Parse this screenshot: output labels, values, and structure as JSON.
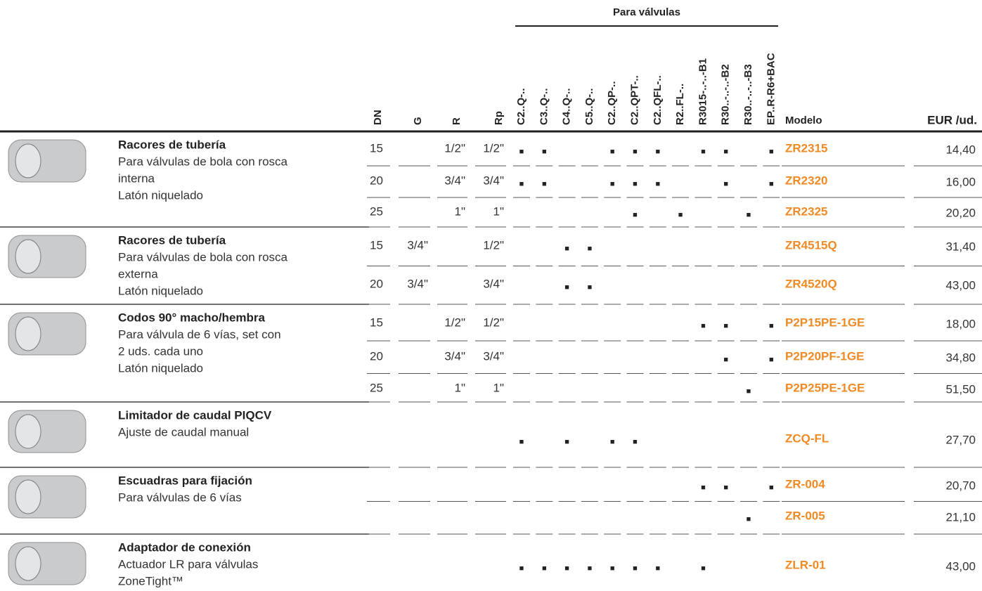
{
  "header": {
    "group_title": "Para válvulas",
    "columns": [
      "DN",
      "G",
      "R",
      "Rp"
    ],
    "valve_columns": [
      "C2..Q-..",
      "C3..Q-..",
      "C4..Q-..",
      "C5..Q-..",
      "C2..QP-..",
      "C2..QPT-..",
      "C2..QFL-..",
      "R2..FL-..",
      "R3015-..-..-B1",
      "R30..-..-..-B2",
      "R30..-..-..-B3",
      "EP..R-R6+BAC"
    ],
    "model": "Modelo",
    "price": "EUR /ud."
  },
  "groups": [
    {
      "description": [
        "Racores de tubería",
        "Para válvulas de bola con rosca",
        "interna",
        "Latón niquelado"
      ],
      "rows": [
        {
          "dn": "15",
          "g": null,
          "r": "1/2\"",
          "rp": "1/2\"",
          "valves": [
            "■",
            "■",
            null,
            null,
            "■",
            "■",
            "■",
            null,
            "■",
            "■",
            null,
            "■"
          ],
          "model": "ZR2315",
          "price": "14,40"
        },
        {
          "dn": "20",
          "g": null,
          "r": "3/4\"",
          "rp": "3/4\"",
          "valves": [
            "■",
            "■",
            null,
            null,
            "■",
            "■",
            "■",
            null,
            null,
            "■",
            null,
            "■"
          ],
          "model": "ZR2320",
          "price": "16,00"
        },
        {
          "dn": "25",
          "g": null,
          "r": "1\"",
          "rp": "1\"",
          "valves": [
            null,
            null,
            null,
            null,
            null,
            "■",
            null,
            "■",
            null,
            null,
            "■",
            null
          ],
          "model": "ZR2325",
          "price": "20,20"
        }
      ]
    },
    {
      "description": [
        "Racores de tubería",
        "Para válvulas de bola con rosca",
        "externa",
        "Latón niquelado"
      ],
      "rows": [
        {
          "dn": "15",
          "g": "3/4\"",
          "r": null,
          "rp": "1/2\"",
          "valves": [
            null,
            null,
            "■",
            "■",
            null,
            null,
            null,
            null,
            null,
            null,
            null,
            null
          ],
          "model": "ZR4515Q",
          "price": "31,40"
        },
        {
          "dn": "20",
          "g": "3/4\"",
          "r": null,
          "rp": "3/4\"",
          "valves": [
            null,
            null,
            "■",
            "■",
            null,
            null,
            null,
            null,
            null,
            null,
            null,
            null
          ],
          "model": "ZR4520Q",
          "price": "43,00"
        }
      ]
    },
    {
      "description": [
        "Codos 90° macho/hembra",
        "Para válvula de 6 vías, set con",
        "2 uds. cada uno",
        "Latón niquelado"
      ],
      "rows": [
        {
          "dn": "15",
          "g": null,
          "r": "1/2\"",
          "rp": "1/2\"",
          "valves": [
            null,
            null,
            null,
            null,
            null,
            null,
            null,
            null,
            "■",
            "■",
            null,
            "■"
          ],
          "model": "P2P15PE-1GE",
          "price": "18,00"
        },
        {
          "dn": "20",
          "g": null,
          "r": "3/4\"",
          "rp": "3/4\"",
          "valves": [
            null,
            null,
            null,
            null,
            null,
            null,
            null,
            null,
            null,
            "■",
            null,
            "■"
          ],
          "model": "P2P20PF-1GE",
          "price": "34,80"
        },
        {
          "dn": "25",
          "g": null,
          "r": "1\"",
          "rp": "1\"",
          "valves": [
            null,
            null,
            null,
            null,
            null,
            null,
            null,
            null,
            null,
            null,
            "■",
            null
          ],
          "model": "P2P25PE-1GE",
          "price": "51,50"
        }
      ]
    },
    {
      "description": [
        "Limitador de caudal PIQCV",
        "Ajuste de caudal manual"
      ],
      "rows": [
        {
          "dn": null,
          "g": null,
          "r": null,
          "rp": null,
          "valves": [
            "■",
            null,
            "■",
            null,
            "■",
            "■",
            null,
            null,
            null,
            null,
            null,
            null
          ],
          "model": "ZCQ-FL",
          "price": "27,70"
        }
      ]
    },
    {
      "description": [
        "Escuadras para fijación",
        "Para válvulas de 6 vías"
      ],
      "rows": [
        {
          "dn": null,
          "g": null,
          "r": null,
          "rp": null,
          "valves": [
            null,
            null,
            null,
            null,
            null,
            null,
            null,
            null,
            "■",
            "■",
            null,
            "■"
          ],
          "model": "ZR-004",
          "price": "20,70"
        },
        {
          "dn": null,
          "g": null,
          "r": null,
          "rp": null,
          "valves": [
            null,
            null,
            null,
            null,
            null,
            null,
            null,
            null,
            null,
            null,
            "■",
            null
          ],
          "model": "ZR-005",
          "price": "21,10"
        }
      ]
    },
    {
      "description": [
        "Adaptador de conexión",
        "Actuador LR para válvulas",
        "ZoneTight™"
      ],
      "rows": [
        {
          "dn": null,
          "g": null,
          "r": null,
          "rp": null,
          "valves": [
            "■",
            "■",
            "■",
            "■",
            "■",
            "■",
            "■",
            null,
            "■",
            null,
            null,
            null
          ],
          "model": "ZLR-01",
          "price": "43,00"
        }
      ]
    }
  ]
}
